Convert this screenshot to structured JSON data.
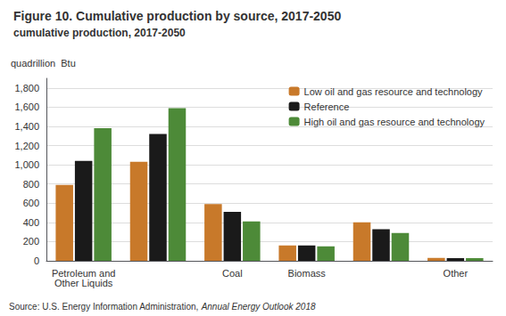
{
  "chart_data": {
    "type": "bar",
    "title": "Figure 10. Cumulative production by source, 2017-2050",
    "subtitle": "cumulative production, 2017-2050",
    "ylabel": "quadrillion  Btu",
    "annotations": [
      "Source: U.S. Energy Information Administration, ",
      "Annual Energy Outlook 2018"
    ],
    "categories": [
      "Petroleum and\nOther Liquids",
      null,
      "Coal",
      "Biomass",
      null,
      "Other"
    ],
    "series": [
      {
        "name": "Low oil and gas resource and technology",
        "color": "#C8792A",
        "values": [
          790,
          1030,
          590,
          160,
          400,
          30
        ]
      },
      {
        "name": "Reference",
        "color": "#1A1A1A",
        "values": [
          1040,
          1320,
          510,
          160,
          330,
          28
        ]
      },
      {
        "name": "High oil and gas resource and technology",
        "color": "#4D8A38",
        "values": [
          1380,
          1590,
          410,
          150,
          290,
          28
        ]
      }
    ],
    "ylim": [
      0,
      1900
    ],
    "yticks": [
      0,
      200,
      400,
      600,
      800,
      {
        "value": 1000,
        "label": "1,000"
      },
      {
        "value": 1200,
        "label": "1,200"
      },
      {
        "value": 1400,
        "label": "1,400"
      },
      {
        "value": 1600,
        "label": "1,600"
      },
      {
        "value": 1800,
        "label": "1,800"
      }
    ],
    "grid": true,
    "legend": "upper right"
  }
}
